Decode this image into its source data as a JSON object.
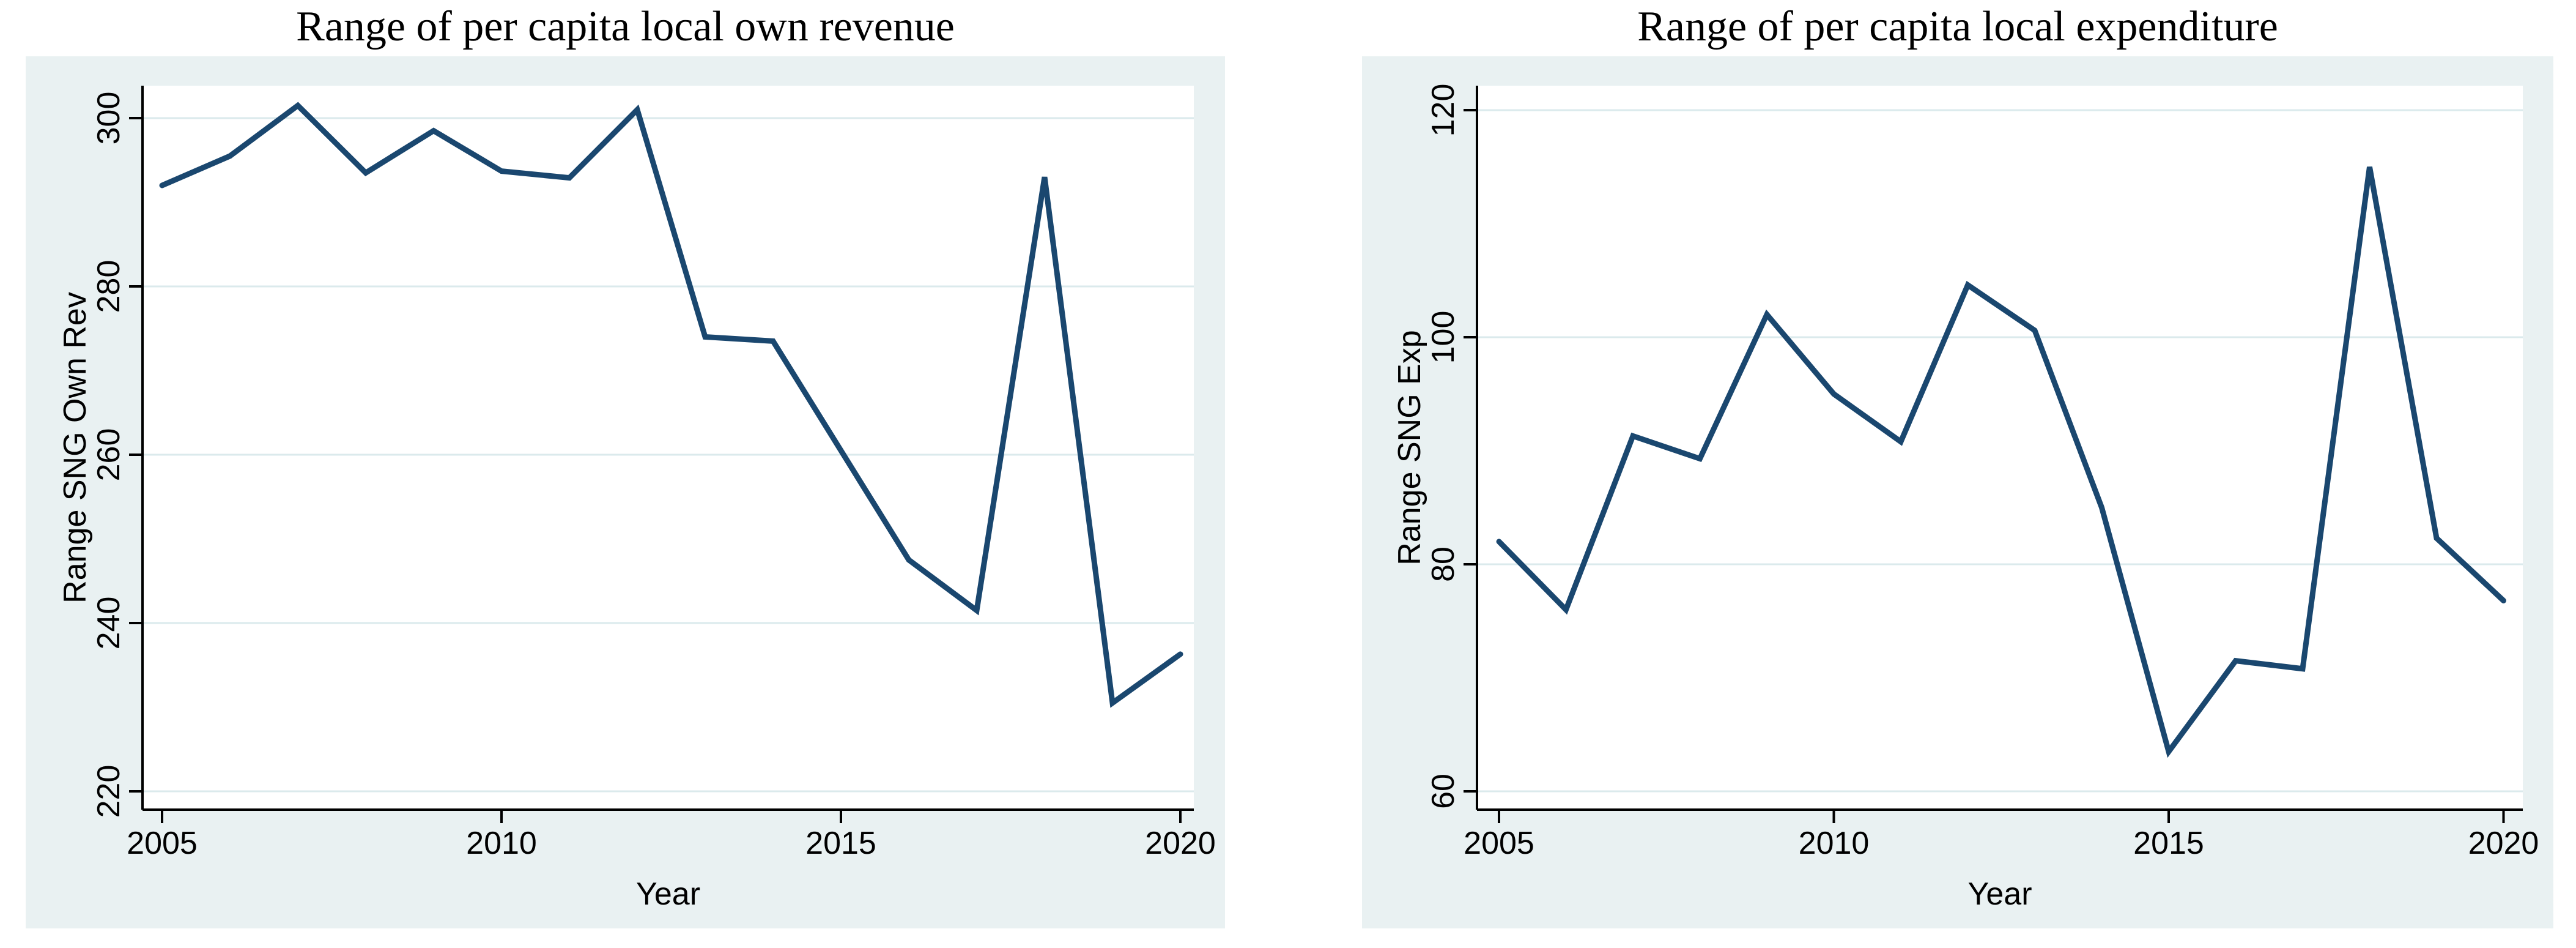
{
  "page": {
    "background": "#ffffff"
  },
  "colors": {
    "line": "#1a476f",
    "card_bg": "#e9f1f2",
    "plot_bg": "#ffffff",
    "grid": "#dbeaec",
    "axis": "#000000",
    "text": "#000000"
  },
  "chart_data": [
    {
      "type": "line",
      "title": "Range of per capita local own revenue",
      "xlabel": "Year",
      "ylabel": "Range SNG Own Rev",
      "x": [
        2005,
        2006,
        2007,
        2008,
        2009,
        2010,
        2011,
        2012,
        2013,
        2014,
        2015,
        2016,
        2017,
        2018,
        2019,
        2020
      ],
      "values": [
        292,
        295.5,
        301.5,
        293.5,
        298.5,
        293.7,
        292.9,
        301,
        274,
        273.5,
        260.5,
        247.5,
        241.5,
        293,
        230.5,
        236.3
      ],
      "xticks": [
        2005,
        2010,
        2015,
        2020
      ],
      "yticks": [
        300,
        280,
        260,
        240,
        220
      ],
      "ylim": [
        216,
        304
      ],
      "xlim": [
        2005,
        2020
      ],
      "grid": true,
      "legend": "none"
    },
    {
      "type": "line",
      "title": "Range of per capita local expenditure",
      "xlabel": "Year",
      "ylabel": "Range SNG Exp",
      "x": [
        2005,
        2006,
        2007,
        2008,
        2009,
        2010,
        2011,
        2012,
        2013,
        2014,
        2015,
        2016,
        2017,
        2018,
        2019,
        2020
      ],
      "values": [
        82,
        76,
        91.3,
        89.3,
        102,
        95,
        90.8,
        104.6,
        100.6,
        85,
        63.5,
        71.5,
        70.8,
        115,
        82.3,
        76.8
      ],
      "xticks": [
        2005,
        2010,
        2015,
        2020
      ],
      "yticks": [
        120,
        100,
        80,
        60
      ],
      "ylim": [
        58,
        122
      ],
      "xlim": [
        2005,
        2020
      ],
      "grid": true,
      "legend": "none"
    }
  ]
}
